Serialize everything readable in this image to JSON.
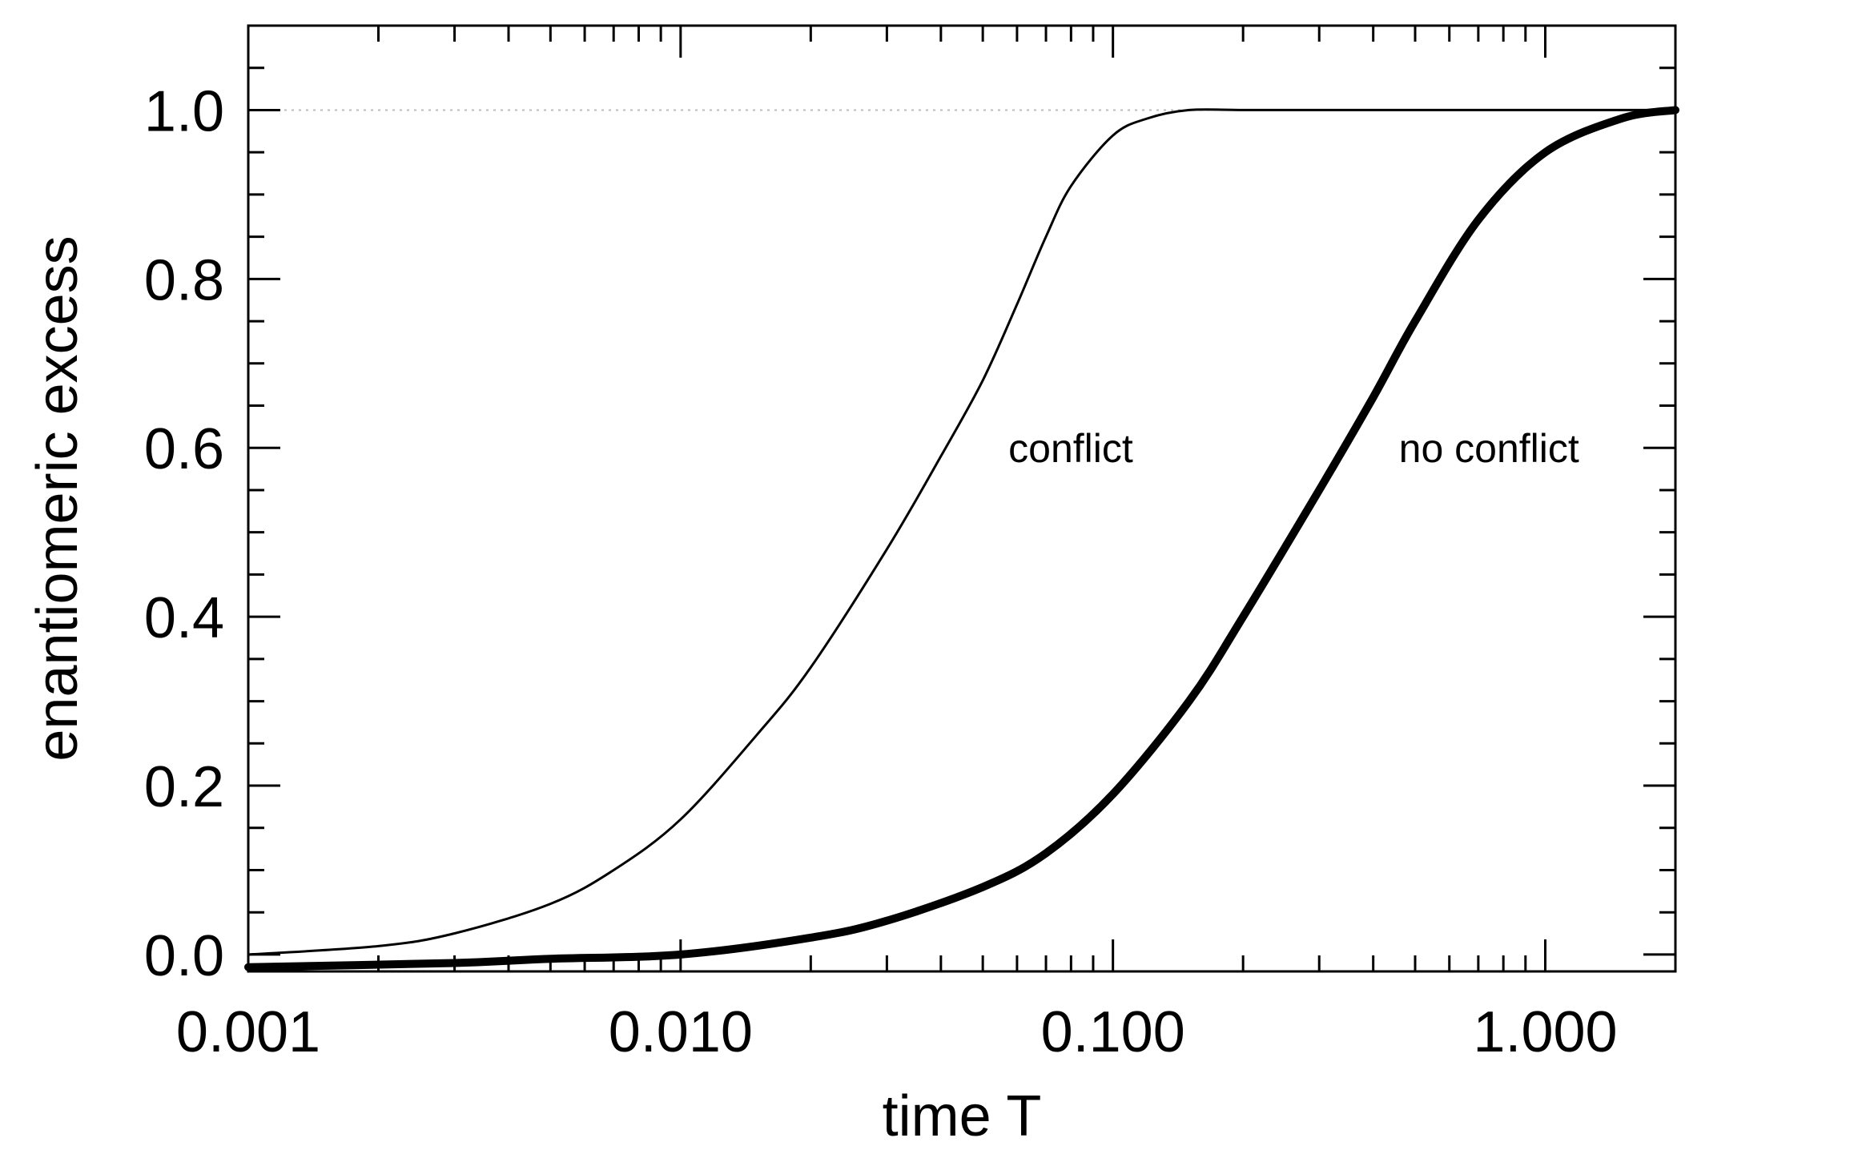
{
  "chart_data": {
    "type": "line",
    "title": "",
    "xlabel": "time T",
    "ylabel": "enantiomeric excess",
    "x_scale": "log",
    "xlim": [
      0.001,
      2.0
    ],
    "ylim": [
      -0.02,
      1.1
    ],
    "grid": false,
    "reference_line": {
      "y": 1.0,
      "style": "dotted",
      "color": "#bbbbbb"
    },
    "x_ticks": [
      {
        "value": 0.001,
        "label": "0.001"
      },
      {
        "value": 0.01,
        "label": "0.010"
      },
      {
        "value": 0.1,
        "label": "0.100"
      },
      {
        "value": 1.0,
        "label": "1.000"
      }
    ],
    "y_ticks": [
      {
        "value": 0.0,
        "label": "0.0"
      },
      {
        "value": 0.2,
        "label": "0.2"
      },
      {
        "value": 0.4,
        "label": "0.4"
      },
      {
        "value": 0.6,
        "label": "0.6"
      },
      {
        "value": 0.8,
        "label": "0.8"
      },
      {
        "value": 1.0,
        "label": "1.0"
      }
    ],
    "series": [
      {
        "name": "conflict",
        "line": "thin",
        "color": "#000000",
        "x": [
          0.001,
          0.002,
          0.003,
          0.005,
          0.007,
          0.01,
          0.015,
          0.02,
          0.03,
          0.04,
          0.05,
          0.06,
          0.07,
          0.08,
          0.1,
          0.12,
          0.15,
          0.2,
          0.3,
          0.5,
          1.0,
          2.0
        ],
        "y": [
          0.0,
          0.01,
          0.025,
          0.06,
          0.1,
          0.16,
          0.26,
          0.34,
          0.48,
          0.59,
          0.68,
          0.77,
          0.85,
          0.91,
          0.97,
          0.99,
          1.0,
          1.0,
          1.0,
          1.0,
          1.0,
          1.0
        ]
      },
      {
        "name": "no conflict",
        "line": "thick",
        "color": "#000000",
        "x": [
          0.001,
          0.003,
          0.005,
          0.01,
          0.02,
          0.03,
          0.05,
          0.07,
          0.1,
          0.15,
          0.2,
          0.3,
          0.4,
          0.5,
          0.7,
          1.0,
          1.5,
          2.0
        ],
        "y": [
          -0.015,
          -0.01,
          -0.005,
          0.0,
          0.02,
          0.04,
          0.08,
          0.12,
          0.19,
          0.3,
          0.4,
          0.55,
          0.66,
          0.75,
          0.87,
          0.95,
          0.99,
          1.0
        ]
      }
    ],
    "annotations": [
      {
        "text": "conflict",
        "x": 0.05,
        "y": 0.6
      },
      {
        "text": "no conflict",
        "x": 0.4,
        "y": 0.6
      }
    ]
  }
}
